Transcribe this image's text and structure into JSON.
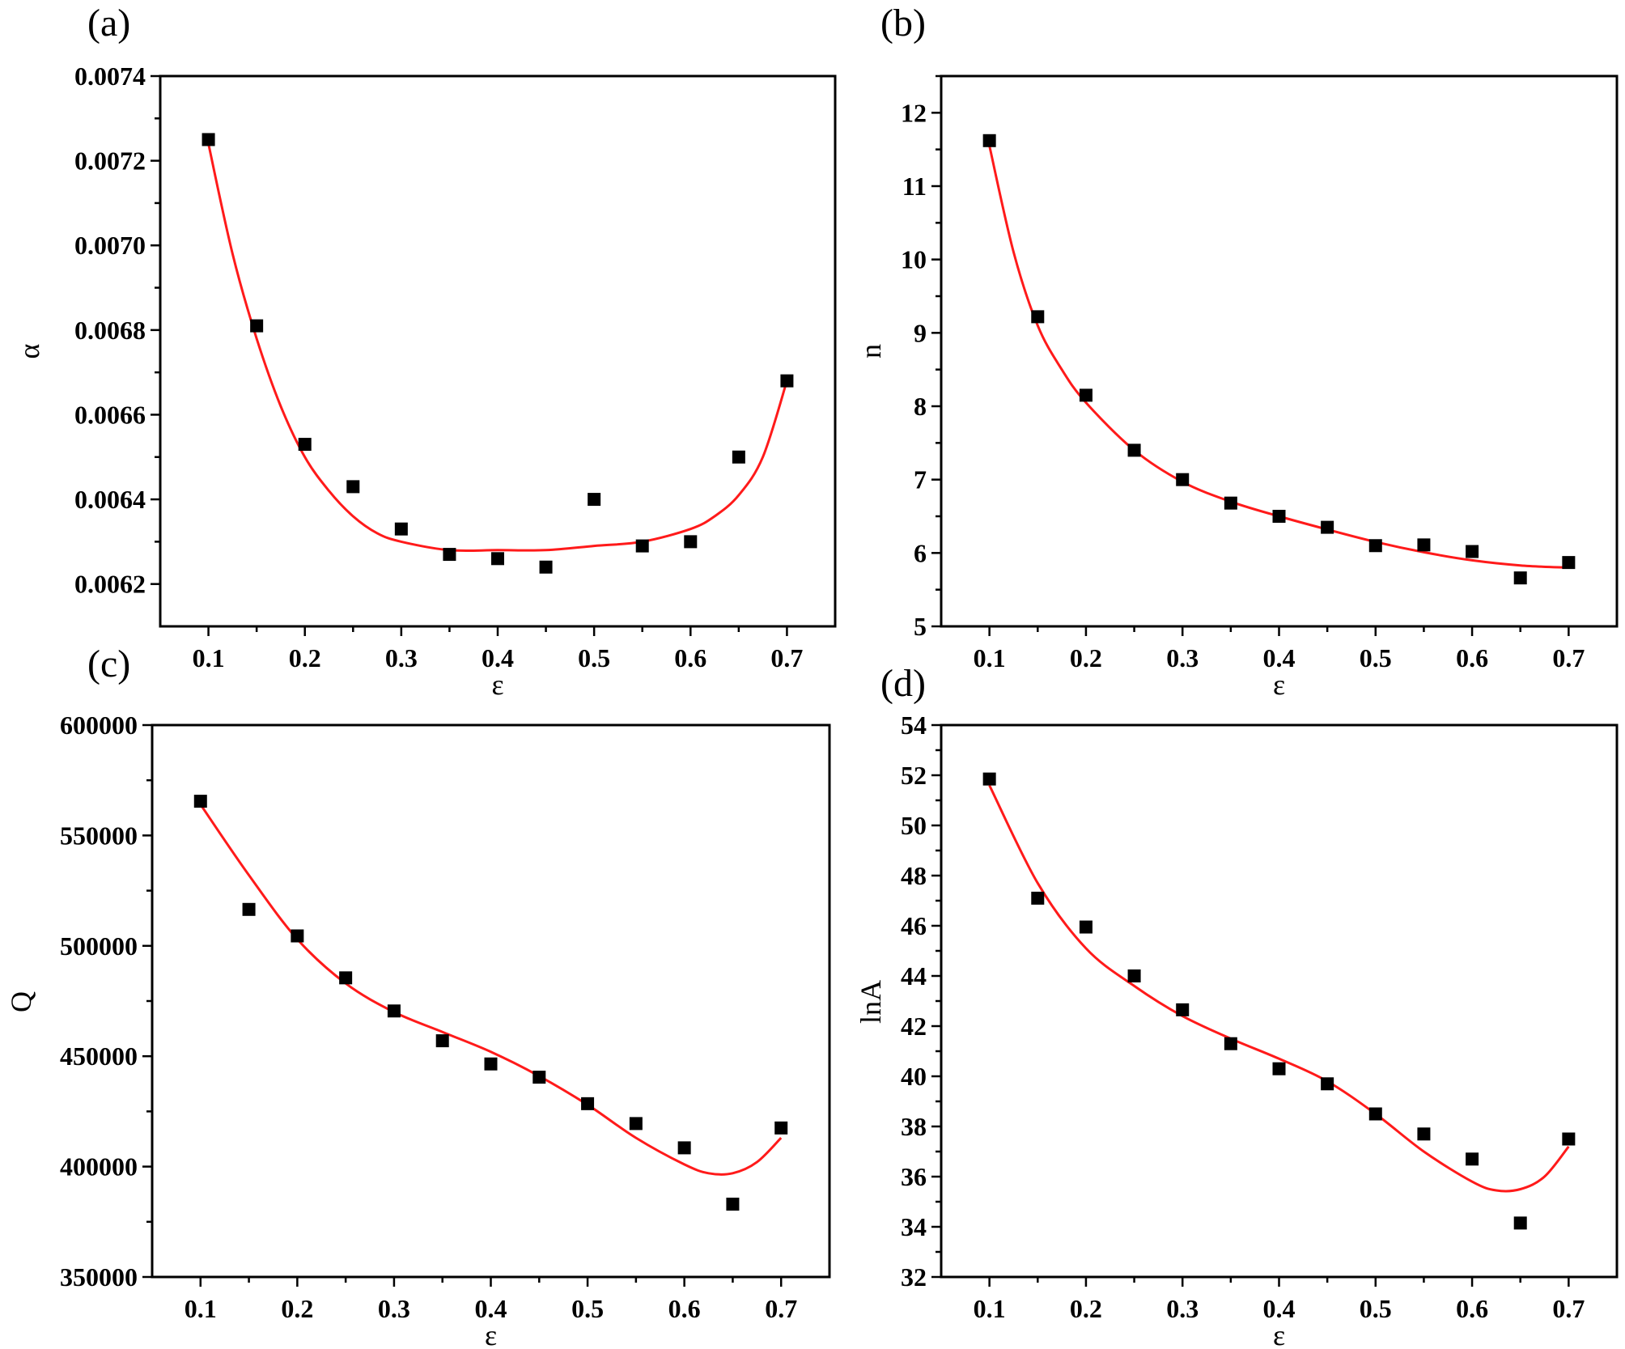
{
  "palette": {
    "marker": "#000000",
    "fit_curve": "#ff1a1a",
    "frame": "#000000"
  },
  "chart_data": [
    {
      "panel_label": "(a)",
      "type": "scatter",
      "xlabel": "ε",
      "ylabel": "α",
      "xlim": [
        0.05,
        0.75
      ],
      "ylim": [
        0.0061,
        0.0074
      ],
      "xticks": [
        0.1,
        0.2,
        0.3,
        0.4,
        0.5,
        0.6,
        0.7
      ],
      "xtick_labels": [
        "0.1",
        "0.2",
        "0.3",
        "0.4",
        "0.5",
        "0.6",
        "0.7"
      ],
      "yticks": [
        0.0062,
        0.0064,
        0.0066,
        0.0068,
        0.007,
        0.0072,
        0.0074
      ],
      "ytick_labels": [
        "0.0062",
        "0.0064",
        "0.0066",
        "0.0068",
        "0.0070",
        "0.0072",
        "0.0074"
      ],
      "grid": false,
      "series": [
        {
          "marker": "square",
          "x": [
            0.1,
            0.15,
            0.2,
            0.25,
            0.3,
            0.35,
            0.4,
            0.45,
            0.5,
            0.55,
            0.6,
            0.65,
            0.7
          ],
          "y": [
            0.00725,
            0.00681,
            0.00653,
            0.00643,
            0.00633,
            0.00627,
            0.00626,
            0.00624,
            0.0064,
            0.00629,
            0.0063,
            0.0065,
            0.00668
          ]
        },
        {
          "style": "line",
          "x": [
            0.1,
            0.125,
            0.15,
            0.175,
            0.2,
            0.225,
            0.25,
            0.275,
            0.3,
            0.35,
            0.4,
            0.45,
            0.5,
            0.55,
            0.6,
            0.625,
            0.65,
            0.675,
            0.7
          ],
          "y": [
            0.00724,
            0.00698,
            0.00678,
            0.00662,
            0.0065,
            0.00642,
            0.00636,
            0.00632,
            0.0063,
            0.00628,
            0.00628,
            0.00628,
            0.00629,
            0.0063,
            0.00633,
            0.00636,
            0.00641,
            0.0065,
            0.00668
          ]
        }
      ]
    },
    {
      "panel_label": "(b)",
      "type": "scatter",
      "xlabel": "ε",
      "ylabel": "n",
      "xlim": [
        0.05,
        0.75
      ],
      "ylim": [
        5,
        12.5
      ],
      "xticks": [
        0.1,
        0.2,
        0.3,
        0.4,
        0.5,
        0.6,
        0.7
      ],
      "xtick_labels": [
        "0.1",
        "0.2",
        "0.3",
        "0.4",
        "0.5",
        "0.6",
        "0.7"
      ],
      "yticks": [
        5,
        6,
        7,
        8,
        9,
        10,
        11,
        12
      ],
      "ytick_labels": [
        "5",
        "6",
        "7",
        "8",
        "9",
        "10",
        "11",
        "12"
      ],
      "grid": false,
      "series": [
        {
          "marker": "square",
          "x": [
            0.1,
            0.15,
            0.2,
            0.25,
            0.3,
            0.35,
            0.4,
            0.45,
            0.5,
            0.55,
            0.6,
            0.65,
            0.7
          ],
          "y": [
            11.62,
            9.22,
            8.15,
            7.4,
            7.0,
            6.68,
            6.5,
            6.35,
            6.1,
            6.11,
            6.02,
            5.66,
            5.87
          ]
        },
        {
          "style": "line",
          "x": [
            0.1,
            0.125,
            0.15,
            0.175,
            0.2,
            0.25,
            0.3,
            0.35,
            0.4,
            0.45,
            0.5,
            0.55,
            0.6,
            0.65,
            0.7
          ],
          "y": [
            11.55,
            10.1,
            9.1,
            8.5,
            8.05,
            7.4,
            6.97,
            6.7,
            6.5,
            6.32,
            6.15,
            6.01,
            5.9,
            5.83,
            5.8
          ]
        }
      ]
    },
    {
      "panel_label": "(c)",
      "type": "scatter",
      "xlabel": "ε",
      "ylabel": "Q",
      "xlim": [
        0.05,
        0.75
      ],
      "ylim": [
        350000,
        600000
      ],
      "xticks": [
        0.1,
        0.2,
        0.3,
        0.4,
        0.5,
        0.6,
        0.7
      ],
      "xtick_labels": [
        "0.1",
        "0.2",
        "0.3",
        "0.4",
        "0.5",
        "0.6",
        "0.7"
      ],
      "yticks": [
        350000,
        400000,
        450000,
        500000,
        550000,
        600000
      ],
      "ytick_labels": [
        "350000",
        "400000",
        "450000",
        "500000",
        "550000",
        "600000"
      ],
      "grid": false,
      "series": [
        {
          "marker": "square",
          "x": [
            0.1,
            0.15,
            0.2,
            0.25,
            0.3,
            0.35,
            0.4,
            0.45,
            0.5,
            0.55,
            0.6,
            0.65,
            0.7
          ],
          "y": [
            565500,
            516500,
            504500,
            485500,
            470500,
            457000,
            446500,
            440500,
            428500,
            419500,
            408500,
            383000,
            417500
          ]
        },
        {
          "style": "line",
          "x": [
            0.1,
            0.15,
            0.2,
            0.25,
            0.3,
            0.35,
            0.4,
            0.45,
            0.5,
            0.55,
            0.6,
            0.625,
            0.65,
            0.675,
            0.7
          ],
          "y": [
            564000,
            532000,
            503000,
            483000,
            470000,
            461000,
            452000,
            441000,
            428000,
            413000,
            401000,
            397000,
            397000,
            402000,
            413000
          ]
        }
      ]
    },
    {
      "panel_label": "(d)",
      "type": "scatter",
      "xlabel": "ε",
      "ylabel": "lnA",
      "xlim": [
        0.05,
        0.75
      ],
      "ylim": [
        32,
        54
      ],
      "xticks": [
        0.1,
        0.2,
        0.3,
        0.4,
        0.5,
        0.6,
        0.7
      ],
      "xtick_labels": [
        "0.1",
        "0.2",
        "0.3",
        "0.4",
        "0.5",
        "0.6",
        "0.7"
      ],
      "yticks": [
        32,
        34,
        36,
        38,
        40,
        42,
        44,
        46,
        48,
        50,
        52,
        54
      ],
      "ytick_labels": [
        "32",
        "34",
        "36",
        "38",
        "40",
        "42",
        "44",
        "46",
        "48",
        "50",
        "52",
        "54"
      ],
      "grid": false,
      "series": [
        {
          "marker": "square",
          "x": [
            0.1,
            0.15,
            0.2,
            0.25,
            0.3,
            0.35,
            0.4,
            0.45,
            0.5,
            0.55,
            0.6,
            0.65,
            0.7
          ],
          "y": [
            51.85,
            47.1,
            45.95,
            44.0,
            42.65,
            41.3,
            40.3,
            39.7,
            38.5,
            37.7,
            36.7,
            34.15,
            37.5
          ]
        },
        {
          "style": "line",
          "x": [
            0.1,
            0.15,
            0.2,
            0.25,
            0.3,
            0.35,
            0.4,
            0.45,
            0.5,
            0.55,
            0.6,
            0.625,
            0.65,
            0.675,
            0.7
          ],
          "y": [
            51.6,
            47.7,
            45.1,
            43.6,
            42.4,
            41.5,
            40.7,
            39.8,
            38.5,
            37.0,
            35.8,
            35.45,
            35.5,
            36.0,
            37.2
          ]
        }
      ]
    }
  ]
}
